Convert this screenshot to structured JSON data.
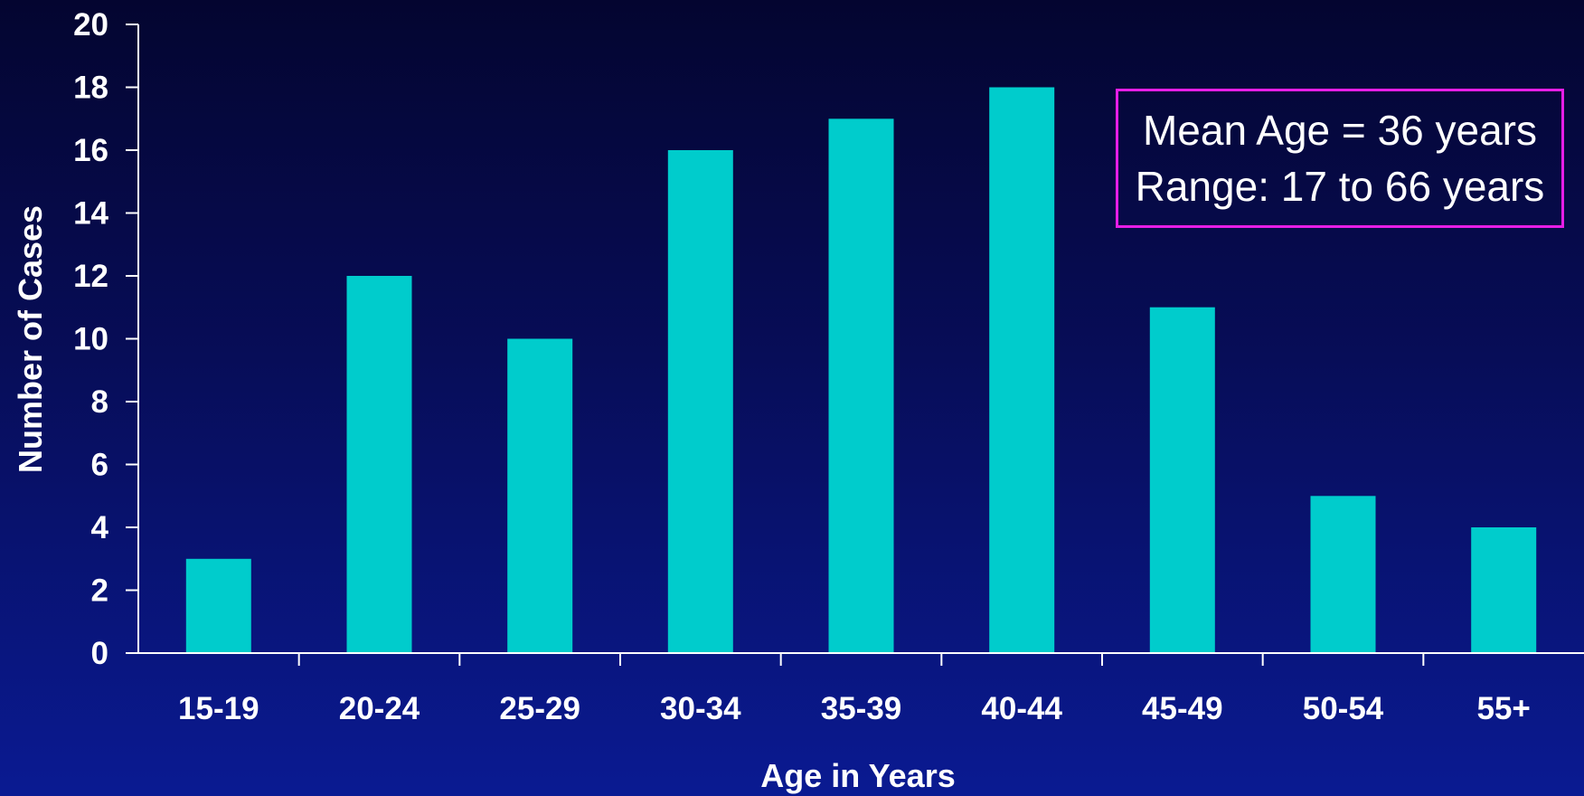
{
  "chart_data": {
    "type": "bar",
    "categories": [
      "15-19",
      "20-24",
      "25-29",
      "30-34",
      "35-39",
      "40-44",
      "45-49",
      "50-54",
      "55+"
    ],
    "values": [
      3,
      12,
      10,
      16,
      17,
      18,
      11,
      5,
      4
    ],
    "xlabel": "Age in Years",
    "ylabel": "Number of Cases",
    "ylim": [
      0,
      20
    ],
    "yticks": [
      0,
      2,
      4,
      6,
      8,
      10,
      12,
      14,
      16,
      18,
      20
    ],
    "grid": false,
    "legend": "none",
    "bar_color": "#00cccc",
    "axis_color": "#ffffff",
    "annotation": {
      "line1": "Mean Age = 36 years",
      "line2": "Range: 17 to 66 years",
      "border_color": "#e61ee6"
    }
  }
}
